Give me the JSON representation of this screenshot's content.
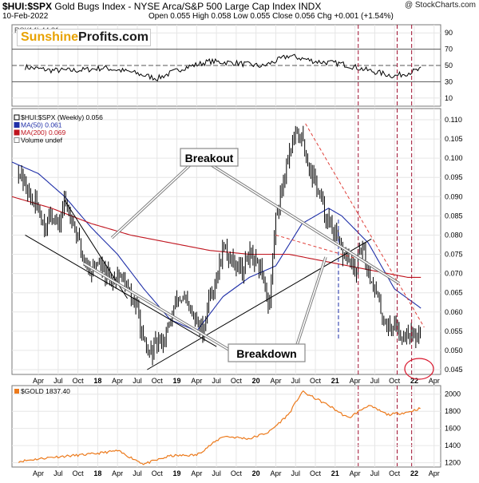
{
  "header": {
    "symbol": "$HUI:$SPX",
    "title": "Gold Bugs Index - NYSE Arca/S&P 500 Large Cap Index INDX",
    "date": "10-Feb-2022",
    "ohlc": "Open 0.055  High 0.058  Low 0.055  Close 0.056  Chg +0.001 (+1.54%)",
    "watermark": "@ StockCharts.com"
  },
  "logo": {
    "part1": "Sunshine",
    "part2": "Profits.com"
  },
  "x_axis": {
    "labels": [
      "Apr",
      "Jul",
      "Oct",
      "18",
      "Apr",
      "Jul",
      "Oct",
      "19",
      "Apr",
      "Jul",
      "Oct",
      "20",
      "Apr",
      "Jul",
      "Oct",
      "21",
      "Apr",
      "Jul",
      "Oct",
      "22",
      "Apr"
    ]
  },
  "rsi_panel": {
    "label": "RSI(14) 44.81",
    "ticks": [
      "90",
      "70",
      "50",
      "30",
      "10"
    ]
  },
  "main_panel": {
    "legend": [
      {
        "text": "$HUI:$SPX (Weekly) 0.056",
        "color": "#000000"
      },
      {
        "text": "MA(50) 0.061",
        "color": "#1f2fa8"
      },
      {
        "text": "MA(200) 0.069",
        "color": "#c0141e"
      },
      {
        "text": "Volume undef",
        "color": "#000000"
      }
    ],
    "ticks": [
      "0.110",
      "0.105",
      "0.100",
      "0.095",
      "0.090",
      "0.085",
      "0.080",
      "0.075",
      "0.070",
      "0.065",
      "0.060",
      "0.055",
      "0.050",
      "0.045"
    ],
    "annotations": {
      "breakout": "Breakout",
      "breakdown": "Breakdown"
    }
  },
  "gold_panel": {
    "legend": "$GOLD 1837.40",
    "ticks": [
      "2000",
      "1800",
      "1600",
      "1400",
      "1200"
    ]
  },
  "colors": {
    "price": "#000000",
    "ma50": "#1f2fa8",
    "ma200": "#c0141e",
    "gold": "#ec7a1c",
    "vline_red": "#a01030",
    "vline_blue": "#1f2fa8",
    "trend_red": "#e0403a",
    "circle": "#d8142a"
  },
  "chart_data": [
    {
      "type": "line",
      "name": "RSI",
      "x": [
        "2017-02",
        "2017-06",
        "2017-10",
        "2018-02",
        "2018-06",
        "2018-10",
        "2019-02",
        "2019-06",
        "2019-10",
        "2020-02",
        "2020-06",
        "2020-10",
        "2021-02",
        "2021-06",
        "2021-10",
        "2022-02"
      ],
      "values": [
        48,
        44,
        44,
        47,
        42,
        34,
        47,
        55,
        53,
        49,
        62,
        55,
        52,
        44,
        37,
        45
      ],
      "ylim": [
        0,
        100
      ],
      "reference_lines": [
        70,
        50,
        30
      ]
    },
    {
      "type": "line",
      "series": [
        {
          "name": "$HUI:$SPX (Weekly)",
          "x": [
            "2017-01",
            "2017-02",
            "2017-03",
            "2017-04",
            "2017-05",
            "2017-06",
            "2017-07",
            "2017-08",
            "2017-09",
            "2017-10",
            "2017-11",
            "2017-12",
            "2018-01",
            "2018-02",
            "2018-03",
            "2018-04",
            "2018-05",
            "2018-06",
            "2018-07",
            "2018-08",
            "2018-09",
            "2018-10",
            "2018-11",
            "2018-12",
            "2019-01",
            "2019-02",
            "2019-03",
            "2019-04",
            "2019-05",
            "2019-06",
            "2019-07",
            "2019-08",
            "2019-09",
            "2019-10",
            "2019-11",
            "2019-12",
            "2020-01",
            "2020-02",
            "2020-03",
            "2020-04",
            "2020-05",
            "2020-06",
            "2020-07",
            "2020-08",
            "2020-09",
            "2020-10",
            "2020-11",
            "2020-12",
            "2021-01",
            "2021-02",
            "2021-03",
            "2021-04",
            "2021-05",
            "2021-06",
            "2021-07",
            "2021-08",
            "2021-09",
            "2021-10",
            "2021-11",
            "2021-12",
            "2022-01",
            "2022-02"
          ],
          "values": [
            0.097,
            0.093,
            0.089,
            0.087,
            0.082,
            0.086,
            0.082,
            0.089,
            0.085,
            0.079,
            0.073,
            0.071,
            0.073,
            0.07,
            0.068,
            0.07,
            0.068,
            0.064,
            0.061,
            0.051,
            0.049,
            0.052,
            0.053,
            0.057,
            0.064,
            0.063,
            0.06,
            0.057,
            0.055,
            0.065,
            0.068,
            0.077,
            0.074,
            0.073,
            0.071,
            0.075,
            0.072,
            0.07,
            0.061,
            0.085,
            0.093,
            0.102,
            0.106,
            0.105,
            0.098,
            0.094,
            0.088,
            0.083,
            0.08,
            0.075,
            0.074,
            0.07,
            0.077,
            0.071,
            0.066,
            0.06,
            0.056,
            0.057,
            0.054,
            0.055,
            0.053,
            0.056
          ],
          "color": "#000000"
        },
        {
          "name": "MA(50)",
          "x": [
            "2016-12",
            "2017-04",
            "2017-08",
            "2017-12",
            "2018-04",
            "2018-08",
            "2018-12",
            "2019-04",
            "2019-08",
            "2019-12",
            "2020-04",
            "2020-08",
            "2020-12",
            "2021-02",
            "2021-06",
            "2021-10",
            "2022-02"
          ],
          "values": [
            0.099,
            0.096,
            0.09,
            0.082,
            0.075,
            0.066,
            0.058,
            0.055,
            0.064,
            0.069,
            0.072,
            0.083,
            0.087,
            0.085,
            0.078,
            0.066,
            0.061
          ],
          "color": "#1f2fa8"
        },
        {
          "name": "MA(200)",
          "x": [
            "2016-12",
            "2017-06",
            "2017-12",
            "2018-06",
            "2018-12",
            "2019-06",
            "2019-12",
            "2020-06",
            "2020-12",
            "2021-06",
            "2021-12",
            "2022-02"
          ],
          "values": [
            0.09,
            0.087,
            0.083,
            0.08,
            0.078,
            0.076,
            0.075,
            0.075,
            0.073,
            0.071,
            0.069,
            0.069
          ],
          "color": "#c0141e"
        }
      ],
      "ylim": [
        0.045,
        0.113
      ]
    },
    {
      "type": "line",
      "name": "$GOLD",
      "x": [
        "2017-01",
        "2017-06",
        "2017-12",
        "2018-04",
        "2018-08",
        "2018-12",
        "2019-04",
        "2019-08",
        "2019-12",
        "2020-03",
        "2020-06",
        "2020-08",
        "2020-12",
        "2021-03",
        "2021-06",
        "2021-09",
        "2021-12",
        "2022-02"
      ],
      "values": [
        1215,
        1265,
        1300,
        1340,
        1185,
        1280,
        1290,
        1510,
        1480,
        1560,
        1770,
        2030,
        1870,
        1720,
        1870,
        1760,
        1790,
        1837
      ],
      "ylim": [
        1150,
        2100
      ]
    }
  ]
}
